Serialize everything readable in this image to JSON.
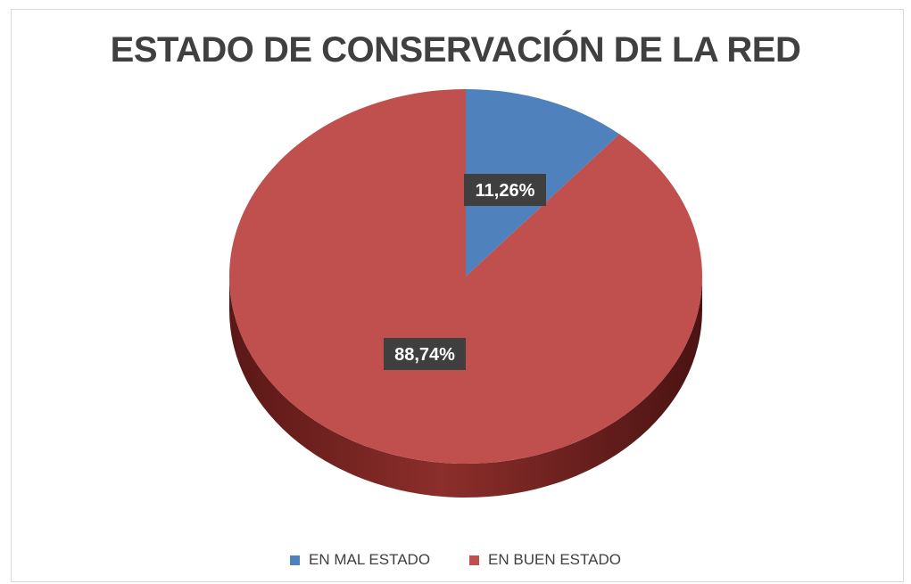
{
  "chart_data": {
    "type": "pie",
    "title": "ESTADO DE CONSERVACIÓN DE LA RED",
    "slices": [
      {
        "label": "EN MAL ESTADO",
        "value": 11.26,
        "display": "11,26%",
        "color": "#4f81bd",
        "side_color": "#2f4f78"
      },
      {
        "label": "EN BUEN ESTADO",
        "value": 88.74,
        "display": "88,74%",
        "color": "#c0504d",
        "side_color": "#7a2523"
      }
    ],
    "legend_position": "bottom",
    "three_d": true
  }
}
